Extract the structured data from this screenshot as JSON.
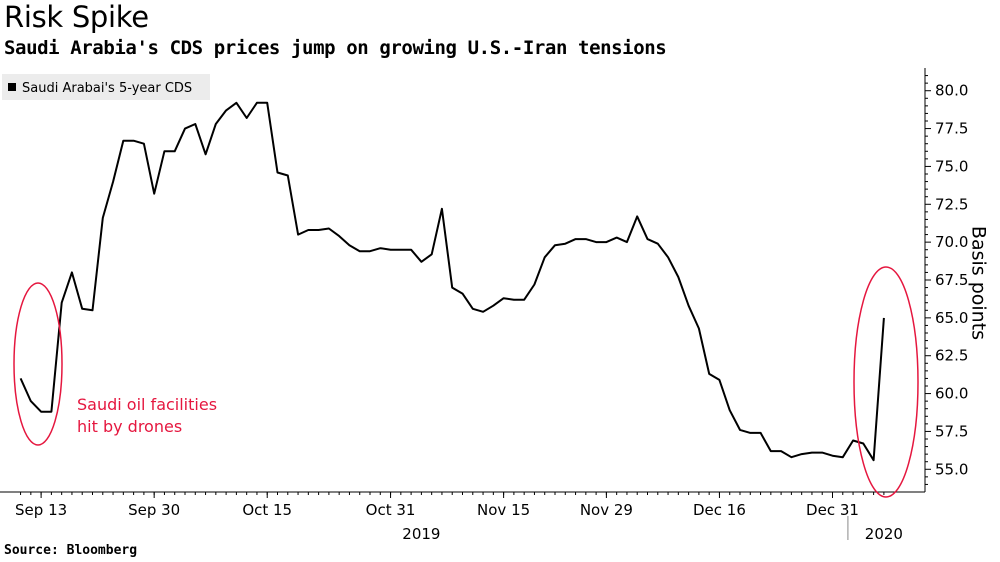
{
  "chart_data": {
    "type": "line",
    "title": "Risk Spike",
    "subtitle": "Saudi Arabia's CDS prices jump on growing U.S.-Iran tensions",
    "source": "Source: Bloomberg",
    "ylabel": "Basis points",
    "ylim": [
      53.5,
      81.5
    ],
    "yticks": [
      55.0,
      57.5,
      60.0,
      62.5,
      65.0,
      67.5,
      70.0,
      72.5,
      75.0,
      77.5,
      80.0
    ],
    "ytick_labels": [
      "55.0",
      "57.5",
      "60.0",
      "62.5",
      "65.0",
      "67.5",
      "70.0",
      "72.5",
      "75.0",
      "77.5",
      "80.0"
    ],
    "xlim_day_index": [
      -2,
      88
    ],
    "x_ticks": [
      {
        "label": "Sep 13",
        "day_index": 2
      },
      {
        "label": "Sep 30",
        "day_index": 13
      },
      {
        "label": "Oct 15",
        "day_index": 24
      },
      {
        "label": "Oct 31",
        "day_index": 36
      },
      {
        "label": "Nov 15",
        "day_index": 47
      },
      {
        "label": "Nov 29",
        "day_index": 57
      },
      {
        "label": "Dec 16",
        "day_index": 68
      },
      {
        "label": "Dec 31",
        "day_index": 79
      }
    ],
    "year_labels": [
      {
        "label": "2019",
        "day_index": 39
      },
      {
        "label": "2020",
        "day_index": 84
      }
    ],
    "year_divider_day_index": 80.5,
    "legend": {
      "label": "Saudi Arabai's 5-year CDS",
      "color": "#000000",
      "position": "top-left"
    },
    "series": [
      {
        "name": "Saudi Arabai's 5-year CDS",
        "color": "#000000",
        "values": [
          61.0,
          59.5,
          58.8,
          58.8,
          66.0,
          68.0,
          65.6,
          65.5,
          71.6,
          74.0,
          76.7,
          76.7,
          76.5,
          73.2,
          76.0,
          76.0,
          77.5,
          77.8,
          75.8,
          77.8,
          78.7,
          79.2,
          78.2,
          79.2,
          79.2,
          74.6,
          74.4,
          70.5,
          70.8,
          70.8,
          70.9,
          70.4,
          69.8,
          69.4,
          69.4,
          69.6,
          69.5,
          69.5,
          69.5,
          68.7,
          69.2,
          72.2,
          67.0,
          66.6,
          65.6,
          65.4,
          65.8,
          66.3,
          66.2,
          66.2,
          67.2,
          69.0,
          69.8,
          69.9,
          70.2,
          70.2,
          70.0,
          70.0,
          70.3,
          70.0,
          71.7,
          70.2,
          69.9,
          69.0,
          67.7,
          65.8,
          64.3,
          61.3,
          60.9,
          58.9,
          57.6,
          57.4,
          57.4,
          56.2,
          56.2,
          55.8,
          56.0,
          56.1,
          56.1,
          55.9,
          55.8,
          56.9,
          56.7,
          55.6,
          65.0
        ]
      }
    ],
    "annotations": [
      {
        "text_lines": [
          "Saudi oil facilities",
          "hit by drones"
        ],
        "color": "#e5173f",
        "target_day_index": 3
      },
      {
        "text_lines": [],
        "color": "#e5173f",
        "target_day_index": 84
      }
    ]
  }
}
